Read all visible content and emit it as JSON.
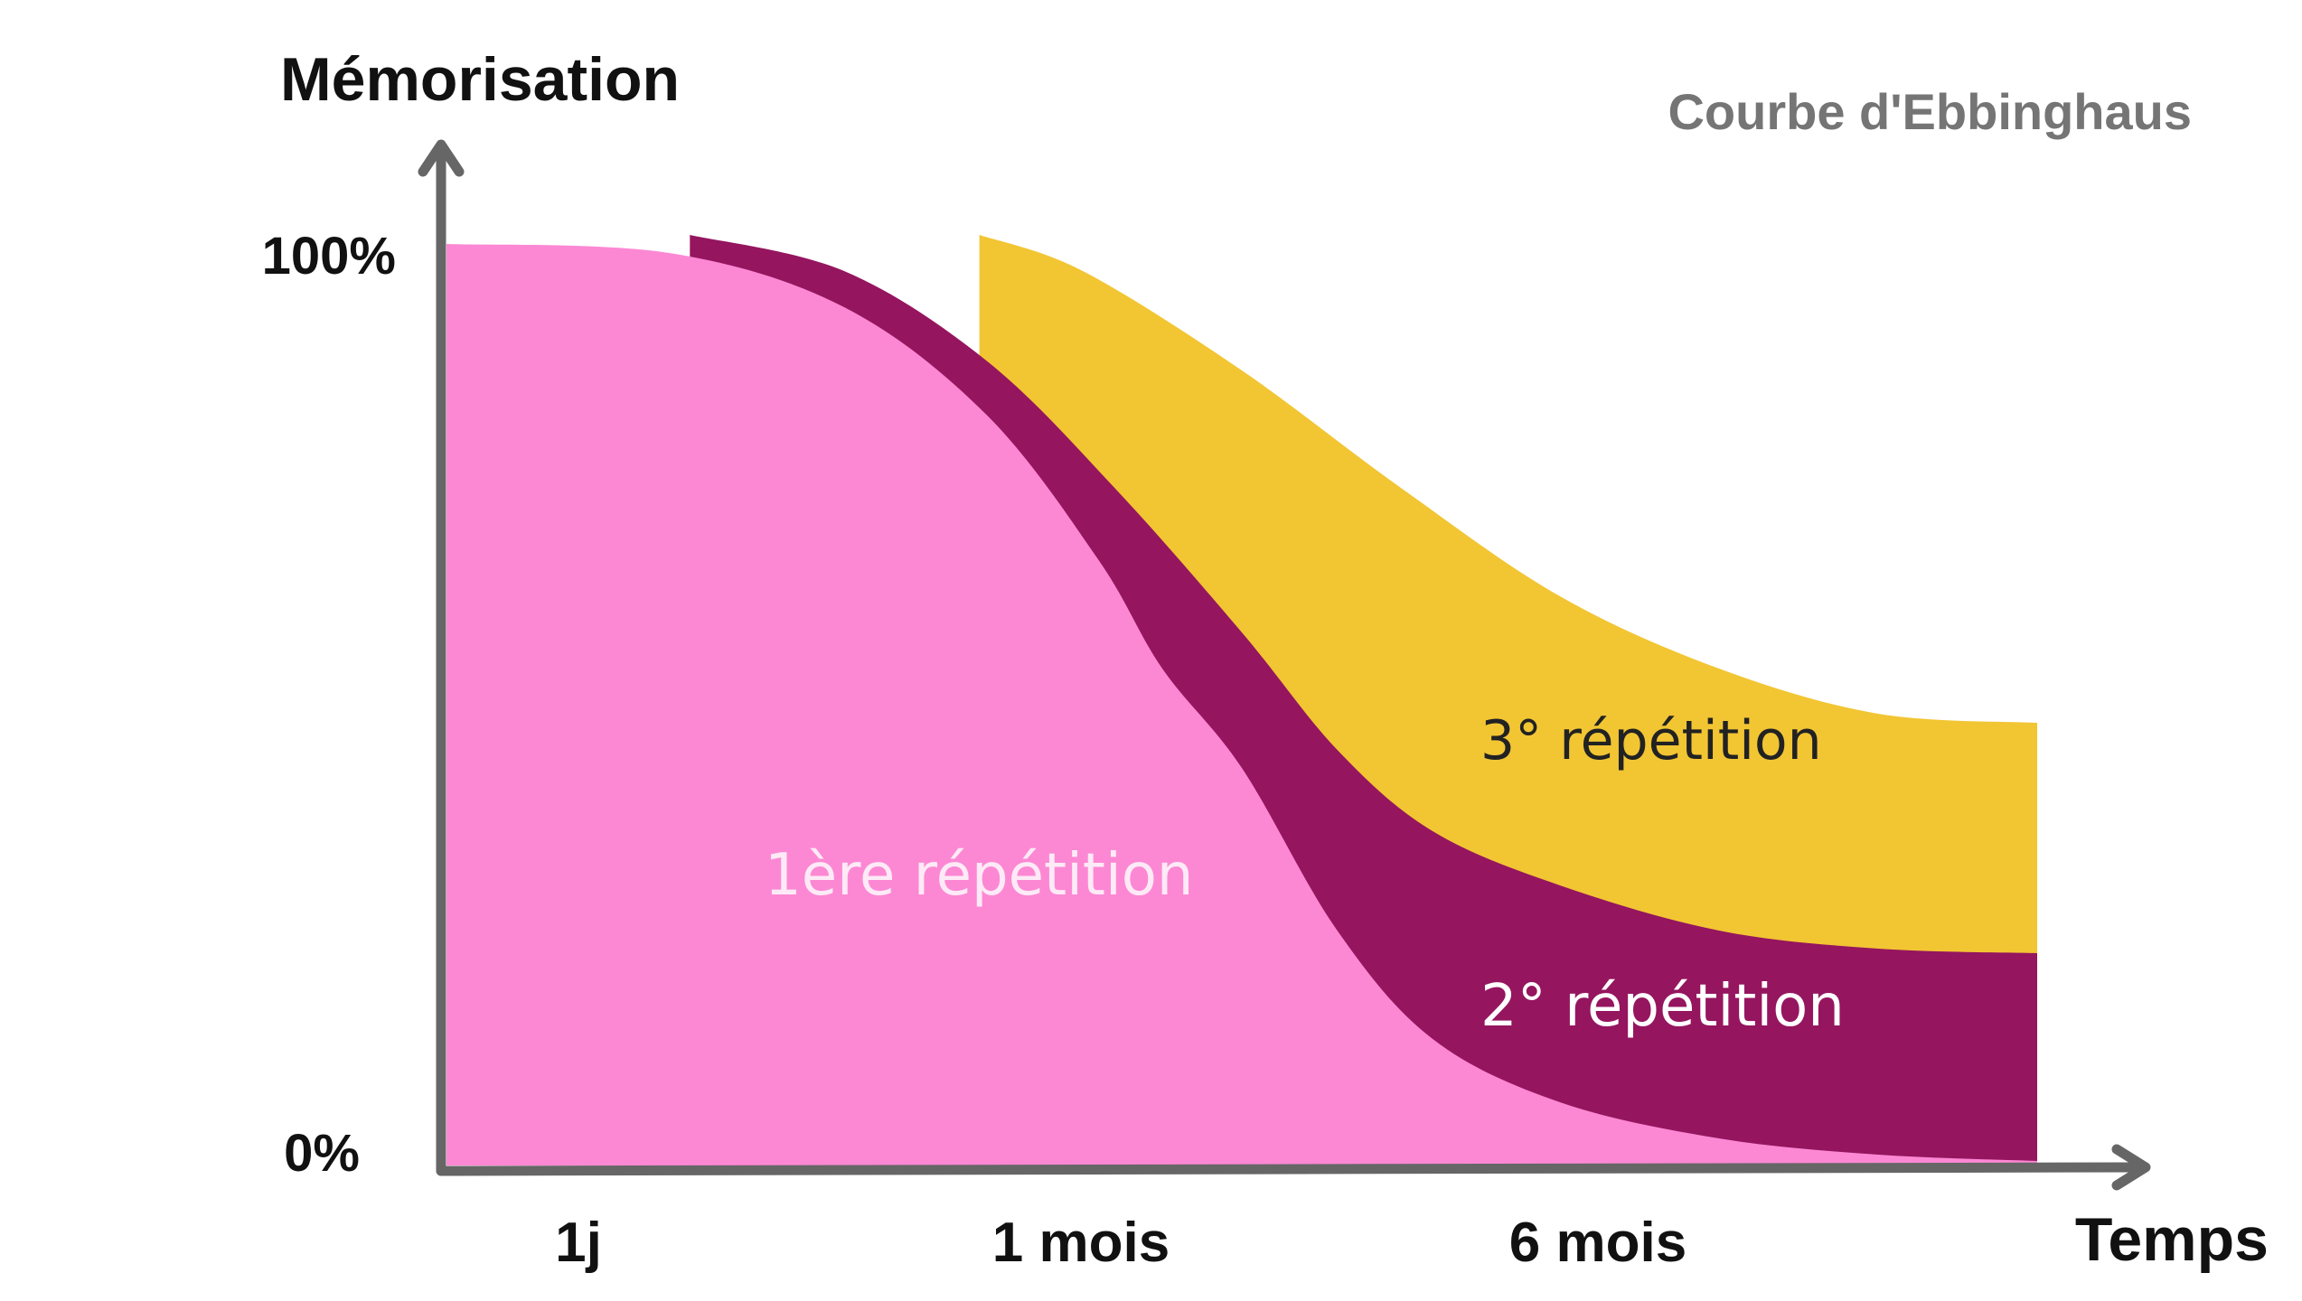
{
  "chart_data": {
    "type": "area",
    "title": "Courbe d'Ebbinghaus",
    "ylabel": "Mémorisation",
    "xlabel": "Temps",
    "x_ticks": [
      "1j",
      "1 mois",
      "6 mois"
    ],
    "y_ticks": [
      "0%",
      "100%"
    ],
    "ylim": [
      0,
      100
    ],
    "grid": false,
    "legend": "none",
    "series": [
      {
        "name": "1ère répétition",
        "color": "#fc88d4",
        "label_color": "#fdeaf6",
        "points": [
          [
            0.0,
            102
          ],
          [
            0.14,
            101
          ],
          [
            0.25,
            95
          ],
          [
            0.34,
            83
          ],
          [
            0.41,
            67
          ],
          [
            0.45,
            55
          ],
          [
            0.5,
            44
          ],
          [
            0.56,
            26
          ],
          [
            0.62,
            14
          ],
          [
            0.7,
            7
          ],
          [
            0.8,
            3
          ],
          [
            0.9,
            1.2
          ],
          [
            1.0,
            0.5
          ]
        ]
      },
      {
        "name": "2° répétition",
        "color": "#95155f",
        "label_color": "#ffffff",
        "points": [
          [
            0.153,
            103
          ],
          [
            0.25,
            99
          ],
          [
            0.34,
            89
          ],
          [
            0.42,
            75
          ],
          [
            0.5,
            59
          ],
          [
            0.56,
            46
          ],
          [
            0.62,
            37
          ],
          [
            0.7,
            31
          ],
          [
            0.8,
            26
          ],
          [
            0.9,
            24
          ],
          [
            1.0,
            23.5
          ]
        ]
      },
      {
        "name": "3° répétition",
        "color": "#f2c533",
        "label_color": "#222222",
        "points": [
          [
            0.335,
            103
          ],
          [
            0.4,
            99
          ],
          [
            0.5,
            88
          ],
          [
            0.6,
            75
          ],
          [
            0.7,
            63
          ],
          [
            0.8,
            55
          ],
          [
            0.9,
            50
          ],
          [
            1.0,
            49
          ]
        ]
      }
    ]
  },
  "colors": {
    "axis": "#666666",
    "axis_text": "#111111",
    "title_text": "#757575"
  }
}
